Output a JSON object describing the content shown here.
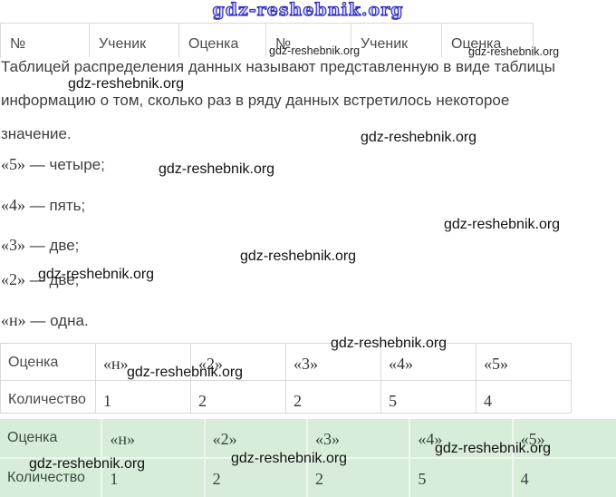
{
  "brand": {
    "logo_text": "gdz-reshebnik.org",
    "watermark_text": "gdz-reshebnik.org"
  },
  "colors": {
    "logo_blue": "#332fc0",
    "table_border": "#d9d9d9",
    "green_background": "#d7edda",
    "body_text": "#3f3f3f"
  },
  "grades_table": {
    "headers": [
      "№",
      "Ученик",
      "Оценка",
      "№",
      "Ученик",
      "Оценка"
    ]
  },
  "paragraph": {
    "line1": "Таблицей распределения данных называют представленную в виде таблицы",
    "line2": "информацию о том, сколько раз в ряду данных встретилось некоторое",
    "line3": "значение."
  },
  "frequency_list": {
    "items": [
      {
        "mark": "«5»",
        "text": "— четыре;"
      },
      {
        "mark": "«4»",
        "text": "— пять;"
      },
      {
        "mark": "«3»",
        "text": "— две;"
      },
      {
        "mark": "«2»",
        "text": "— две;"
      },
      {
        "mark": "«н»",
        "text": "— одна."
      }
    ]
  },
  "distribution": {
    "row1_header": "Оценка",
    "row2_header": "Количество",
    "grades": [
      "«н»",
      "«2»",
      "«3»",
      "«4»",
      "«5»"
    ],
    "counts": [
      "1",
      "2",
      "2",
      "5",
      "4"
    ]
  }
}
